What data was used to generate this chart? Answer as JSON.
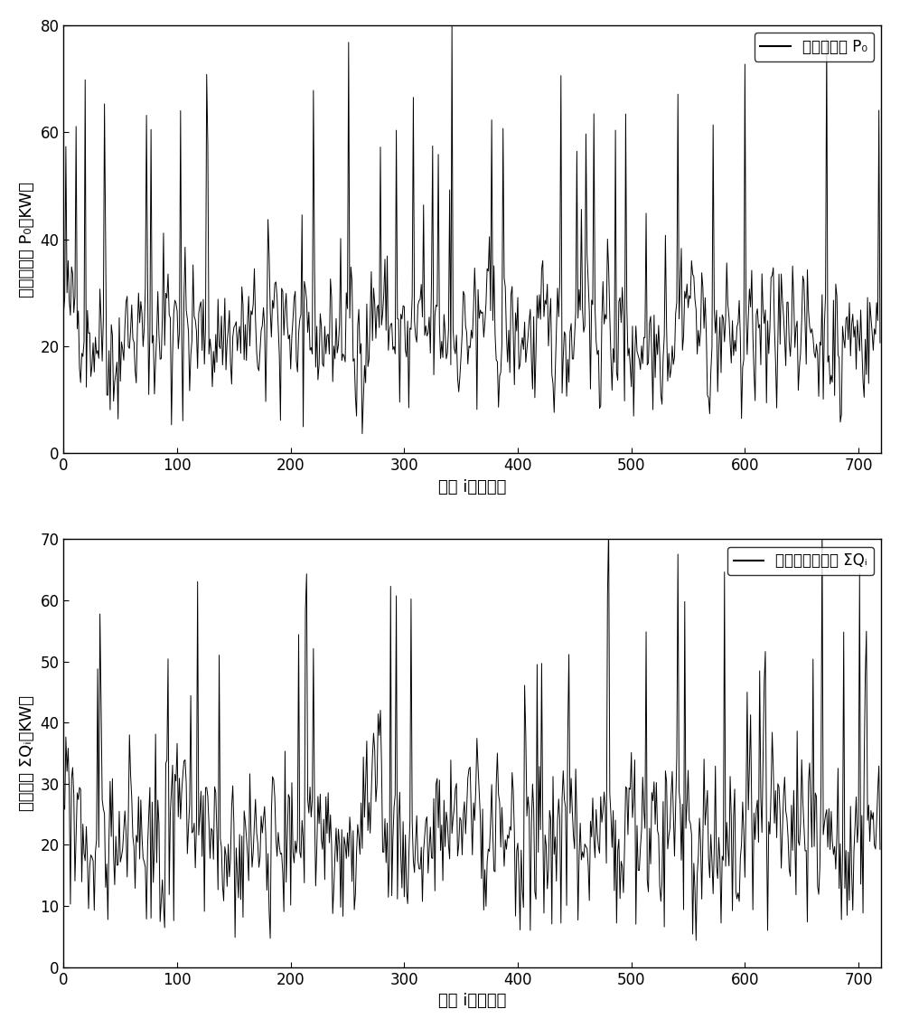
{
  "n_points": 720,
  "plot1": {
    "ylabel_cn": "总输出功率 P₀（KW）",
    "xlabel_cn": "时间 i（小时）",
    "legend_cn": "总输出功率 P₀",
    "ylim": [
      0,
      80
    ],
    "yticks": [
      0,
      20,
      40,
      60,
      80
    ],
    "xlim": [
      0,
      720
    ],
    "xticks": [
      0,
      100,
      200,
      300,
      400,
      500,
      600,
      700
    ]
  },
  "plot2": {
    "ylabel_cn": "用电功率 ΣQᵢ（KW）",
    "xlabel_cn": "时间 i（小时）",
    "legend_cn": "用户用电总功率 ΣQᵢ",
    "ylim": [
      0,
      70
    ],
    "yticks": [
      0,
      10,
      20,
      30,
      40,
      50,
      60,
      70
    ],
    "xlim": [
      0,
      720
    ],
    "xticks": [
      0,
      100,
      200,
      300,
      400,
      500,
      600,
      700
    ]
  },
  "line_color": "#000000",
  "line_width": 0.7,
  "bg_color": "#ffffff",
  "legend_fontsize": 12,
  "tick_fontsize": 12,
  "label_fontsize": 13,
  "seed1": 42,
  "seed2": 99
}
